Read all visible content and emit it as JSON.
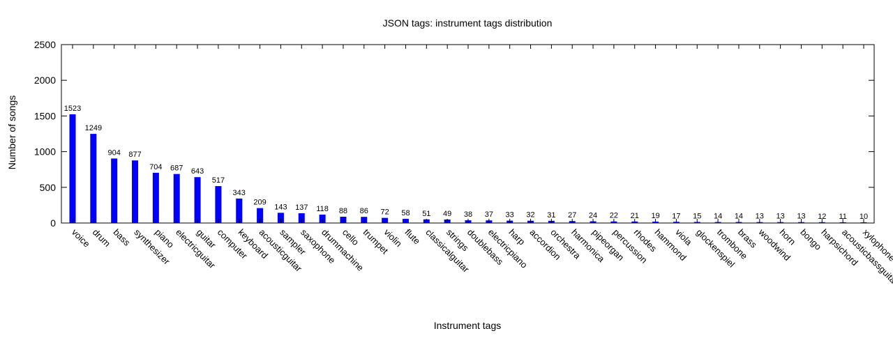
{
  "chart_data": {
    "type": "bar",
    "title": "JSON tags: instrument tags distribution",
    "xlabel": "Instrument tags",
    "ylabel": "Number of songs",
    "ylim": [
      0,
      2500
    ],
    "yticks": [
      0,
      500,
      1000,
      1500,
      2000,
      2500
    ],
    "grid": false,
    "bar_color": "#0000ff",
    "categories": [
      "voice",
      "drum",
      "bass",
      "synthesizer",
      "piano",
      "electricguitar",
      "guitar",
      "computer",
      "keyboard",
      "acousticguitar",
      "sampler",
      "saxophone",
      "drummachine",
      "cello",
      "trumpet",
      "violin",
      "flute",
      "classicalguitar",
      "strings",
      "doublebass",
      "electricpiano",
      "harp",
      "accordion",
      "orchestra",
      "harmonica",
      "pipeorgan",
      "percussion",
      "rhodes",
      "hammond",
      "viola",
      "glockenspiel",
      "trombone",
      "brass",
      "woodwind",
      "horn",
      "bongo",
      "harpsichord",
      "acousticbassguitar",
      "xylophone"
    ],
    "values": [
      1523,
      1249,
      904,
      877,
      704,
      687,
      643,
      517,
      343,
      209,
      143,
      137,
      118,
      88,
      86,
      72,
      58,
      51,
      49,
      38,
      37,
      33,
      32,
      31,
      27,
      24,
      22,
      21,
      19,
      17,
      15,
      14,
      14,
      13,
      13,
      13,
      12,
      11,
      10
    ]
  }
}
